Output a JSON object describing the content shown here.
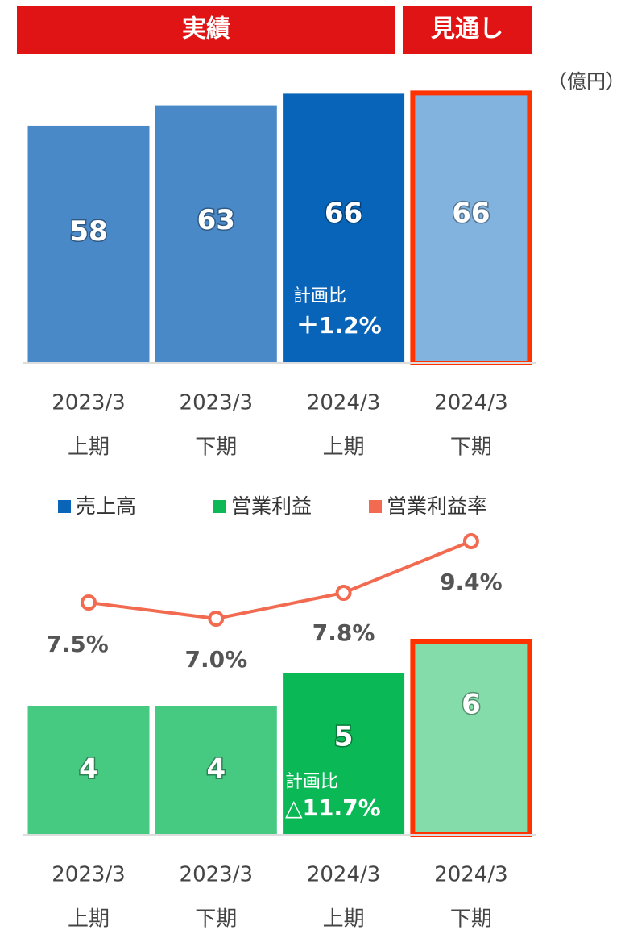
{
  "header": {
    "actual": "実績",
    "forecast": "見通し",
    "unit": "（億円）"
  },
  "chart_data": [
    {
      "type": "bar",
      "categories": [
        [
          "2023/3",
          "上期"
        ],
        [
          "2023/3",
          "下期"
        ],
        [
          "2024/3",
          "上期"
        ],
        [
          "2024/3",
          "下期"
        ]
      ],
      "series": [
        {
          "name": "売上高",
          "color": "#0a64b8",
          "values": [
            58,
            63,
            66,
            66
          ],
          "bar_colors": [
            "#4a89c8",
            "#4a89c8",
            "#0864b8",
            "#82b2de"
          ]
        }
      ],
      "annotation": {
        "text": "計画比",
        "value": "＋1.2%"
      }
    },
    {
      "type": "combo",
      "categories": [
        [
          "2023/3",
          "上期"
        ],
        [
          "2023/3",
          "下期"
        ],
        [
          "2024/3",
          "上期"
        ],
        [
          "2024/3",
          "下期"
        ]
      ],
      "series": [
        {
          "name": "営業利益",
          "color": "#0cb956",
          "values": [
            4,
            4,
            5,
            6
          ],
          "bar_colors": [
            "#46c981",
            "#46c981",
            "#0ab856",
            "#84dcaa"
          ]
        },
        {
          "name": "営業利益率",
          "color": "#f26a4f",
          "values": [
            7.5,
            7.0,
            7.8,
            9.4
          ],
          "value_labels": [
            "7.5%",
            "7.0%",
            "7.8%",
            "9.4%"
          ]
        }
      ],
      "annotation": {
        "text": "計画比",
        "value": "△11.7%"
      }
    }
  ]
}
